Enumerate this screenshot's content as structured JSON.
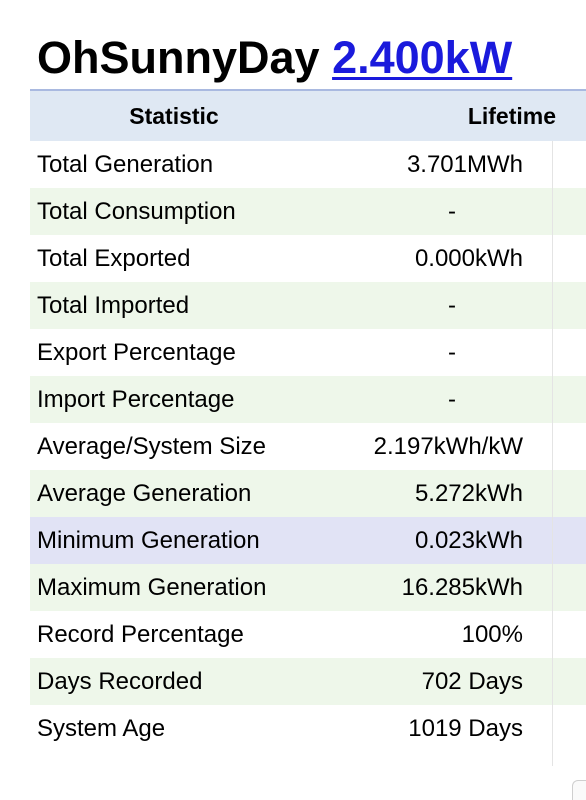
{
  "header": {
    "system_name": "OhSunnyDay",
    "system_size": "2.400kW"
  },
  "table": {
    "columns": [
      "Statistic",
      "Lifetime"
    ],
    "rows": [
      {
        "statistic": "Total Generation",
        "lifetime": "3.701MWh"
      },
      {
        "statistic": "Total Consumption",
        "lifetime": "-"
      },
      {
        "statistic": "Total Exported",
        "lifetime": "0.000kWh"
      },
      {
        "statistic": "Total Imported",
        "lifetime": "-"
      },
      {
        "statistic": "Export Percentage",
        "lifetime": "-"
      },
      {
        "statistic": "Import Percentage",
        "lifetime": "-"
      },
      {
        "statistic": "Average/System Size",
        "lifetime": "2.197kWh/kW"
      },
      {
        "statistic": "Average Generation",
        "lifetime": "5.272kWh"
      },
      {
        "statistic": "Minimum Generation",
        "lifetime": "0.023kWh"
      },
      {
        "statistic": "Maximum Generation",
        "lifetime": "16.285kWh"
      },
      {
        "statistic": "Record Percentage",
        "lifetime": "100%"
      },
      {
        "statistic": "Days Recorded",
        "lifetime": "702 Days"
      },
      {
        "statistic": "System Age",
        "lifetime": "1019 Days"
      }
    ]
  },
  "colors": {
    "link": "#1a1adc",
    "header_bg": "#dfe8f3",
    "alt_row_bg": "#eef7ea",
    "highlight_row_bg": "#e1e3f5"
  }
}
